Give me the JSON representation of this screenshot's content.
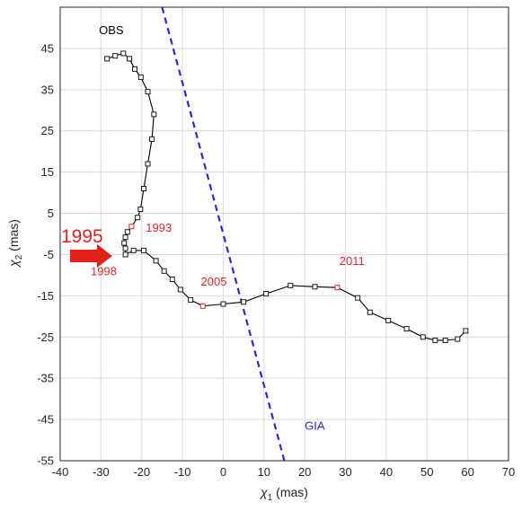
{
  "chart_data": {
    "type": "line",
    "xlabel_base": "χ",
    "xlabel_sub": "1",
    "xlabel_unit": " (mas)",
    "ylabel_base": "χ",
    "ylabel_sub": "2",
    "ylabel_unit": " (mas)",
    "xlim": [
      -40,
      70
    ],
    "ylim": [
      -55,
      55
    ],
    "xticks": [
      -40,
      -30,
      -20,
      -10,
      0,
      10,
      20,
      30,
      40,
      50,
      60,
      70
    ],
    "yticks": [
      45,
      35,
      25,
      15,
      5,
      -5,
      -15,
      -25,
      -35,
      -45,
      -55
    ],
    "grid": true,
    "series": [
      {
        "name": "OBS",
        "color": "#000000",
        "marker": "square",
        "points": [
          {
            "x": -28.5,
            "y": 42.5
          },
          {
            "x": -26.5,
            "y": 43.2
          },
          {
            "x": -24.5,
            "y": 43.8
          },
          {
            "x": -23.0,
            "y": 42.5
          },
          {
            "x": -21.7,
            "y": 40.0
          },
          {
            "x": -20.2,
            "y": 38.0
          },
          {
            "x": -18.5,
            "y": 34.5
          },
          {
            "x": -17.0,
            "y": 29.0
          },
          {
            "x": -17.5,
            "y": 23.0
          },
          {
            "x": -18.5,
            "y": 17.0
          },
          {
            "x": -19.5,
            "y": 11.0
          },
          {
            "x": -20.3,
            "y": 6.0
          },
          {
            "x": -21.0,
            "y": 4.0
          },
          {
            "x": -22.5,
            "y": 1.8
          },
          {
            "x": -23.5,
            "y": 0.5
          },
          {
            "x": -24.0,
            "y": -0.8
          },
          {
            "x": -24.3,
            "y": -2.2
          },
          {
            "x": -24.0,
            "y": -3.5
          },
          {
            "x": -24.0,
            "y": -5.0
          },
          {
            "x": -22.0,
            "y": -4.0
          },
          {
            "x": -19.5,
            "y": -4.0
          },
          {
            "x": -16.5,
            "y": -6.5
          },
          {
            "x": -14.5,
            "y": -9.0
          },
          {
            "x": -12.5,
            "y": -11.0
          },
          {
            "x": -10.5,
            "y": -13.5
          },
          {
            "x": -8.0,
            "y": -16.0
          },
          {
            "x": -5.0,
            "y": -17.5
          },
          {
            "x": 0.0,
            "y": -17.0
          },
          {
            "x": 5.0,
            "y": -16.5
          },
          {
            "x": 10.5,
            "y": -14.5
          },
          {
            "x": 16.5,
            "y": -12.5
          },
          {
            "x": 22.5,
            "y": -12.8
          },
          {
            "x": 28.0,
            "y": -13.0
          },
          {
            "x": 33.0,
            "y": -15.5
          },
          {
            "x": 36.0,
            "y": -19.0
          },
          {
            "x": 40.5,
            "y": -21.0
          },
          {
            "x": 45.0,
            "y": -23.0
          },
          {
            "x": 49.0,
            "y": -25.0
          },
          {
            "x": 52.0,
            "y": -25.8
          },
          {
            "x": 54.5,
            "y": -25.8
          },
          {
            "x": 57.5,
            "y": -25.5
          },
          {
            "x": 59.5,
            "y": -23.5
          }
        ],
        "highlighted": [
          {
            "x": -22.5,
            "y": 1.8
          },
          {
            "x": -21.0,
            "y": -4.0
          },
          {
            "x": -5.0,
            "y": -17.5
          },
          {
            "x": 28.0,
            "y": -13.0
          }
        ]
      },
      {
        "name": "GIA",
        "color": "#2b2bcc",
        "style": "dashed",
        "points": [
          {
            "x": -15.0,
            "y": 55.0
          },
          {
            "x": 15.0,
            "y": -55.0
          }
        ]
      }
    ],
    "annotations": [
      {
        "text": "OBS",
        "x": -30.5,
        "y": 48.5,
        "color": "#000000"
      },
      {
        "text": "GIA",
        "x": 20.0,
        "y": -47.5,
        "color": "#2b2bcc"
      },
      {
        "text": "1993",
        "x": -19.0,
        "y": 0.5,
        "color": "#d42a2a"
      },
      {
        "text": "1998",
        "x": -32.5,
        "y": -10.0,
        "color": "#d42a2a"
      },
      {
        "text": "2005",
        "x": -5.5,
        "y": -12.5,
        "color": "#d42a2a"
      },
      {
        "text": "2011",
        "x": 28.5,
        "y": -7.5,
        "color": "#d42a2a"
      }
    ],
    "callout": {
      "text": "1995",
      "color": "#e0211a"
    }
  }
}
